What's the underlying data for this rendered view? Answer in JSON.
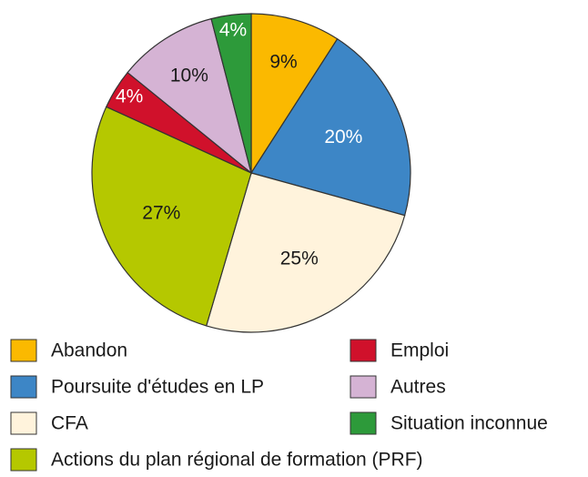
{
  "chart_data": {
    "type": "pie",
    "categories": [
      "Abandon",
      "Poursuite d'études en LP",
      "CFA",
      "Actions du plan régional de formation (PRF)",
      "Emploi",
      "Autres",
      "Situation inconnue"
    ],
    "values": [
      9,
      20,
      25,
      27,
      4,
      10,
      4
    ],
    "value_labels": [
      "9%",
      "20%",
      "25%",
      "27%",
      "4%",
      "10%",
      "4%"
    ],
    "colors": [
      "#fbb900",
      "#3d86c6",
      "#fff3dc",
      "#b5c800",
      "#d0112b",
      "#d5b3d4",
      "#2d9a3a"
    ],
    "label_colors": [
      "#1a1a1a",
      "#ffffff",
      "#1a1a1a",
      "#1a1a1a",
      "#ffffff",
      "#1a1a1a",
      "#ffffff"
    ]
  }
}
